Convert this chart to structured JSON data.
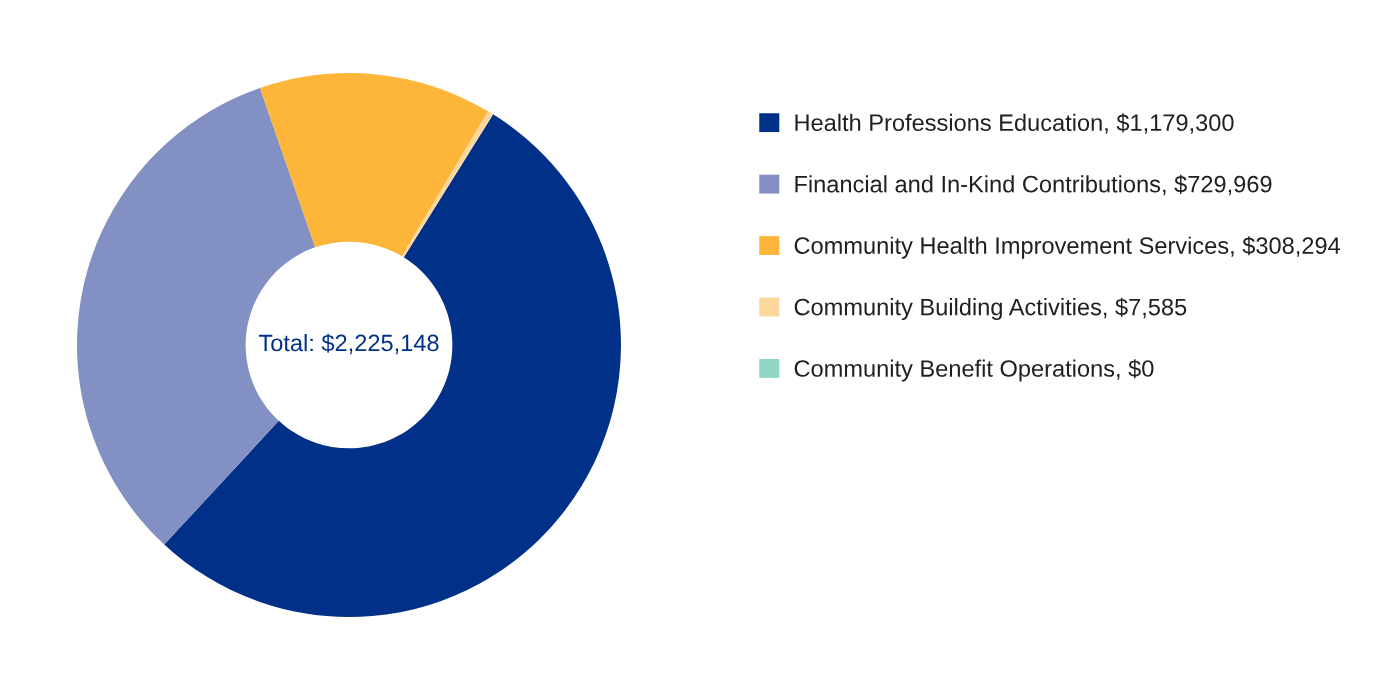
{
  "chart_data": {
    "type": "donut",
    "categories": [
      "Health Professions Education, $1,179,300",
      "Financial and In-Kind Contributions, $729,969",
      "Community Health Improvement Services, $308,294",
      "Community Building Activities, $7,585",
      "Community Benefit Operations, $0"
    ],
    "values": [
      1179300,
      729969,
      308294,
      7585,
      0
    ],
    "colors": [
      "#003087",
      "#8290c3",
      "#fdb53a",
      "#fdd79b",
      "#8dd7c4"
    ],
    "annotations": [
      "Total: $2,225,148"
    ],
    "legend": "right"
  }
}
